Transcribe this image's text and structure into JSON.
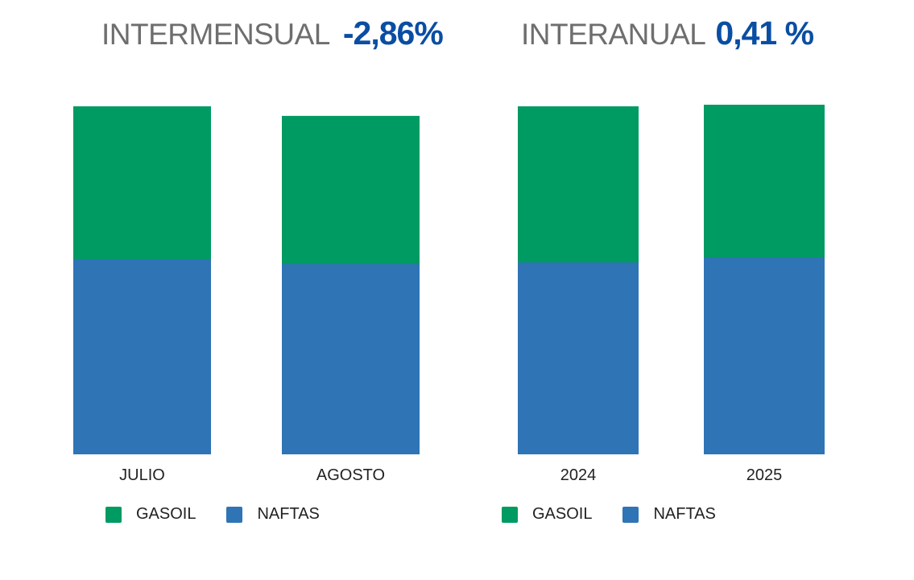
{
  "colors": {
    "gasoil": "#009a63",
    "naftas": "#2f74b5",
    "value_text": "#0a4ea3"
  },
  "chart_data": [
    {
      "type": "bar",
      "stacked": true,
      "header_label": "INTERMENSUAL",
      "header_value": "-2,86%",
      "categories": [
        "JULIO",
        "AGOSTO"
      ],
      "series": [
        {
          "name": "NAFTAS",
          "values": [
            245,
            239
          ]
        },
        {
          "name": "GASOIL",
          "values": [
            191,
            185
          ]
        }
      ],
      "ylim": [
        0,
        440
      ],
      "legend": "bottom-left",
      "grid": false
    },
    {
      "type": "bar",
      "stacked": true,
      "header_label": "INTERANUAL",
      "header_value": "0,41 %",
      "categories": [
        "2024",
        "2025"
      ],
      "series": [
        {
          "name": "NAFTAS",
          "values": [
            241,
            247
          ]
        },
        {
          "name": "GASOIL",
          "values": [
            195,
            191
          ]
        }
      ],
      "ylim": [
        0,
        440
      ],
      "legend": "bottom-left",
      "grid": false
    }
  ]
}
